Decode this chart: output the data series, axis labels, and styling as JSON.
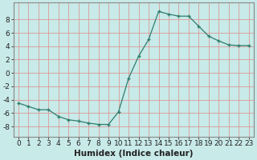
{
  "x": [
    0,
    1,
    2,
    3,
    4,
    5,
    6,
    7,
    8,
    9,
    10,
    11,
    12,
    13,
    14,
    15,
    16,
    17,
    18,
    19,
    20,
    21,
    22,
    23
  ],
  "y": [
    -4.5,
    -5.0,
    -5.5,
    -5.5,
    -6.5,
    -7.0,
    -7.2,
    -7.5,
    -7.7,
    -7.7,
    -5.8,
    -0.8,
    2.5,
    5.0,
    9.2,
    8.8,
    8.5,
    8.5,
    7.0,
    5.5,
    4.8,
    4.2,
    4.1,
    4.1
  ],
  "line_color": "#2e7d6e",
  "marker": "+",
  "marker_size": 3,
  "bg_color": "#c8eae8",
  "grid_color": "#e08080",
  "axis_color": "#555555",
  "xlabel": "Humidex (Indice chaleur)",
  "xlabel_fontsize": 7.5,
  "xtick_labels": [
    "0",
    "1",
    "2",
    "3",
    "4",
    "5",
    "6",
    "7",
    "8",
    "9",
    "10",
    "11",
    "12",
    "13",
    "14",
    "15",
    "16",
    "17",
    "18",
    "19",
    "20",
    "21",
    "22",
    "23"
  ],
  "ytick_values": [
    -8,
    -6,
    -4,
    -2,
    0,
    2,
    4,
    6,
    8
  ],
  "ylim": [
    -9.5,
    10.5
  ],
  "xlim": [
    -0.5,
    23.5
  ],
  "tick_fontsize": 6.5
}
